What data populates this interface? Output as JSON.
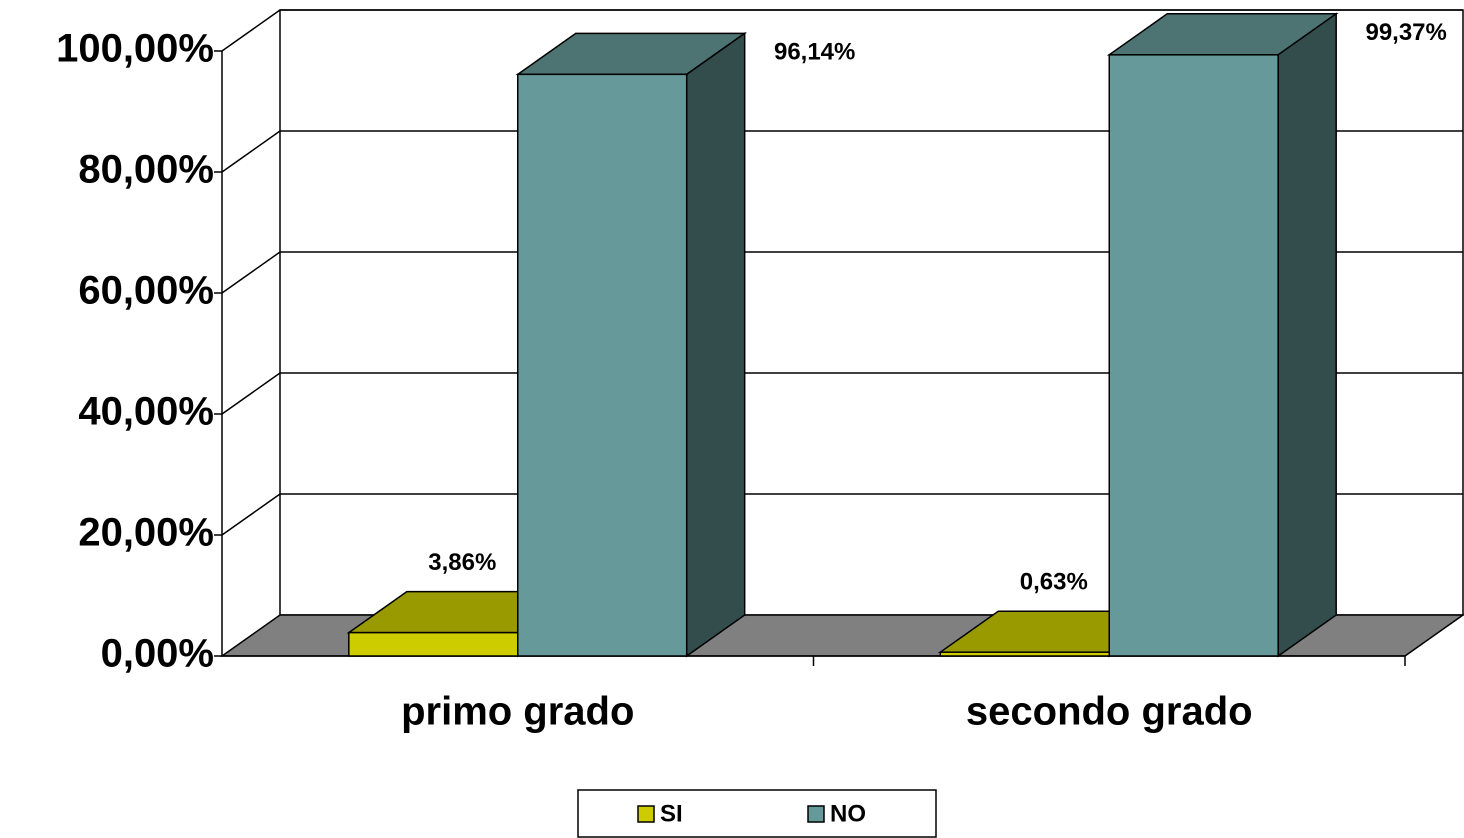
{
  "chart_data": {
    "type": "bar3d",
    "categories": [
      "primo grado",
      "secondo grado"
    ],
    "series": [
      {
        "name": "SI",
        "color": "#cccc00",
        "values": [
          3.86,
          0.63
        ],
        "value_labels": [
          "3,86%",
          "0,63%"
        ]
      },
      {
        "name": "NO",
        "color": "#669999",
        "values": [
          96.14,
          99.37
        ],
        "value_labels": [
          "96,14%",
          "99,37%"
        ]
      }
    ],
    "ylim": [
      0,
      100
    ],
    "yticks": [
      {
        "value": 0,
        "label": "0,00%"
      },
      {
        "value": 20,
        "label": "20,00%"
      },
      {
        "value": 40,
        "label": "40,00%"
      },
      {
        "value": 60,
        "label": "60,00%"
      },
      {
        "value": 80,
        "label": "80,00%"
      },
      {
        "value": 100,
        "label": "100,00%"
      }
    ],
    "grid": true,
    "legend": "bottom"
  }
}
